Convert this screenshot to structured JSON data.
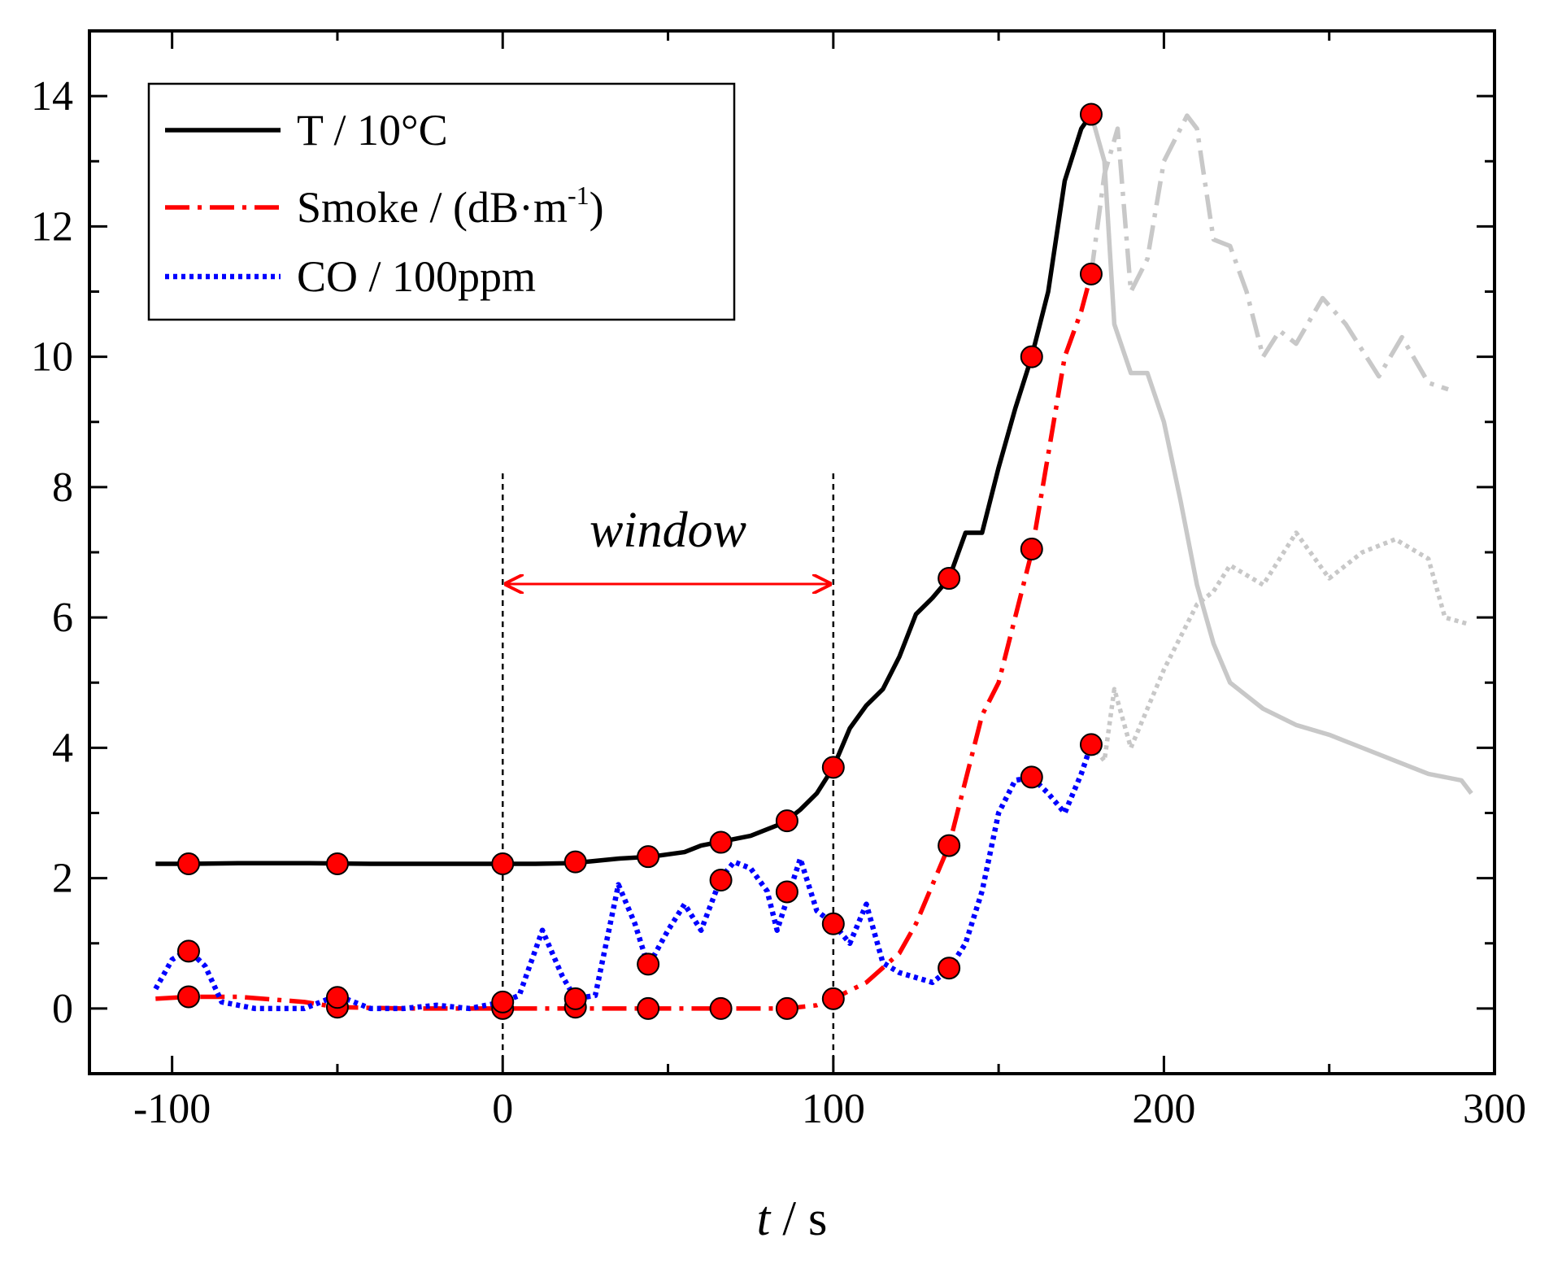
{
  "chart_data": {
    "type": "line",
    "xlabel_var": "t",
    "xlabel_unit": " / s",
    "ylabel": "",
    "xlim": [
      -125,
      300
    ],
    "ylim": [
      -1,
      15
    ],
    "xticks": [
      -100,
      0,
      100,
      200,
      300
    ],
    "yticks": [
      0,
      2,
      4,
      6,
      8,
      10,
      12,
      14
    ],
    "grid": false,
    "legend_position": "top-left",
    "window_annotation": {
      "label": "window",
      "x_start": 0,
      "x_end": 100
    },
    "series": [
      {
        "name": "T / 10°C",
        "color": "#000000",
        "style": "solid",
        "points": [
          [
            -105,
            2.22
          ],
          [
            -95,
            2.22
          ],
          [
            -80,
            2.23
          ],
          [
            -60,
            2.23
          ],
          [
            -40,
            2.22
          ],
          [
            -20,
            2.22
          ],
          [
            0,
            2.22
          ],
          [
            10,
            2.22
          ],
          [
            20,
            2.23
          ],
          [
            25,
            2.25
          ],
          [
            35,
            2.3
          ],
          [
            45,
            2.33
          ],
          [
            55,
            2.4
          ],
          [
            60,
            2.5
          ],
          [
            65,
            2.55
          ],
          [
            75,
            2.65
          ],
          [
            85,
            2.85
          ],
          [
            90,
            3.05
          ],
          [
            95,
            3.3
          ],
          [
            100,
            3.7
          ],
          [
            105,
            4.3
          ],
          [
            110,
            4.65
          ],
          [
            115,
            4.9
          ],
          [
            120,
            5.4
          ],
          [
            125,
            6.05
          ],
          [
            130,
            6.3
          ],
          [
            135,
            6.6
          ],
          [
            140,
            7.3
          ],
          [
            145,
            7.3
          ],
          [
            150,
            8.3
          ],
          [
            155,
            9.2
          ],
          [
            160,
            10.0
          ],
          [
            165,
            11.0
          ],
          [
            170,
            12.7
          ],
          [
            175,
            13.5
          ],
          [
            178,
            13.72
          ]
        ],
        "markers": [
          [
            -95,
            2.22
          ],
          [
            -50,
            2.22
          ],
          [
            0,
            2.22
          ],
          [
            22,
            2.25
          ],
          [
            44,
            2.33
          ],
          [
            66,
            2.55
          ],
          [
            86,
            2.88
          ],
          [
            100,
            3.7
          ],
          [
            135,
            6.6
          ],
          [
            160,
            10.0
          ],
          [
            178,
            13.72
          ]
        ]
      },
      {
        "name": "Smoke / (dB·m",
        "name_sup": "-1",
        "name_suffix": ")",
        "color": "#ff0000",
        "style": "dashdot",
        "points": [
          [
            -105,
            0.15
          ],
          [
            -95,
            0.18
          ],
          [
            -80,
            0.18
          ],
          [
            -60,
            0.1
          ],
          [
            -50,
            0.02
          ],
          [
            -30,
            0.0
          ],
          [
            0,
            0.0
          ],
          [
            20,
            0.0
          ],
          [
            44,
            0.0
          ],
          [
            66,
            0.0
          ],
          [
            86,
            0.0
          ],
          [
            95,
            0.05
          ],
          [
            100,
            0.15
          ],
          [
            110,
            0.4
          ],
          [
            120,
            0.85
          ],
          [
            125,
            1.3
          ],
          [
            130,
            1.9
          ],
          [
            135,
            2.5
          ],
          [
            140,
            3.5
          ],
          [
            145,
            4.5
          ],
          [
            150,
            5.0
          ],
          [
            155,
            6.0
          ],
          [
            160,
            7.0
          ],
          [
            165,
            8.5
          ],
          [
            170,
            10.0
          ],
          [
            175,
            10.7
          ],
          [
            178,
            11.27
          ]
        ],
        "markers": [
          [
            -95,
            0.18
          ],
          [
            -50,
            0.02
          ],
          [
            0,
            0.0
          ],
          [
            22,
            0.02
          ],
          [
            44,
            0.0
          ],
          [
            66,
            0.0
          ],
          [
            86,
            0.0
          ],
          [
            100,
            0.15
          ],
          [
            135,
            2.5
          ],
          [
            160,
            7.05
          ],
          [
            178,
            11.27
          ]
        ]
      },
      {
        "name": "CO / 100ppm",
        "color": "#0000ff",
        "style": "dotted",
        "points": [
          [
            -105,
            0.3
          ],
          [
            -100,
            0.75
          ],
          [
            -95,
            0.9
          ],
          [
            -90,
            0.65
          ],
          [
            -85,
            0.1
          ],
          [
            -75,
            0.0
          ],
          [
            -60,
            0.0
          ],
          [
            -50,
            0.2
          ],
          [
            -40,
            0.0
          ],
          [
            -30,
            0.0
          ],
          [
            -20,
            0.05
          ],
          [
            -10,
            0.0
          ],
          [
            0,
            0.1
          ],
          [
            5,
            0.2
          ],
          [
            12,
            1.2
          ],
          [
            18,
            0.5
          ],
          [
            22,
            0.15
          ],
          [
            28,
            0.2
          ],
          [
            35,
            1.9
          ],
          [
            40,
            1.3
          ],
          [
            44,
            0.65
          ],
          [
            50,
            1.2
          ],
          [
            55,
            1.6
          ],
          [
            60,
            1.2
          ],
          [
            66,
            2.0
          ],
          [
            70,
            2.25
          ],
          [
            75,
            2.15
          ],
          [
            80,
            1.8
          ],
          [
            83,
            1.2
          ],
          [
            90,
            2.3
          ],
          [
            95,
            1.5
          ],
          [
            100,
            1.3
          ],
          [
            105,
            1.0
          ],
          [
            110,
            1.6
          ],
          [
            115,
            0.7
          ],
          [
            120,
            0.55
          ],
          [
            130,
            0.4
          ],
          [
            135,
            0.6
          ],
          [
            140,
            1.0
          ],
          [
            145,
            1.8
          ],
          [
            150,
            3.0
          ],
          [
            155,
            3.5
          ],
          [
            160,
            3.55
          ],
          [
            165,
            3.3
          ],
          [
            170,
            3.0
          ],
          [
            175,
            3.6
          ],
          [
            178,
            4.05
          ]
        ],
        "markers": [
          [
            -95,
            0.88
          ],
          [
            -50,
            0.17
          ],
          [
            0,
            0.1
          ],
          [
            22,
            0.15
          ],
          [
            44,
            0.68
          ],
          [
            66,
            1.97
          ],
          [
            86,
            1.79
          ],
          [
            100,
            1.3
          ],
          [
            135,
            0.62
          ],
          [
            160,
            3.55
          ],
          [
            178,
            4.05
          ]
        ]
      }
    ],
    "faded_series": [
      {
        "color": "#c8c8c8",
        "style": "solid",
        "points": [
          [
            178,
            13.72
          ],
          [
            182,
            13.0
          ],
          [
            185,
            10.5
          ],
          [
            190,
            9.75
          ],
          [
            195,
            9.75
          ],
          [
            200,
            9.0
          ],
          [
            205,
            7.8
          ],
          [
            210,
            6.5
          ],
          [
            215,
            5.6
          ],
          [
            220,
            5.0
          ],
          [
            230,
            4.6
          ],
          [
            240,
            4.35
          ],
          [
            250,
            4.2
          ],
          [
            260,
            4.0
          ],
          [
            270,
            3.8
          ],
          [
            280,
            3.6
          ],
          [
            290,
            3.5
          ],
          [
            293,
            3.3
          ]
        ]
      },
      {
        "color": "#c8c8c8",
        "style": "dashdot",
        "points": [
          [
            178,
            11.27
          ],
          [
            182,
            12.8
          ],
          [
            186,
            13.5
          ],
          [
            190,
            11.0
          ],
          [
            195,
            11.5
          ],
          [
            200,
            13.0
          ],
          [
            207,
            13.7
          ],
          [
            210,
            13.5
          ],
          [
            215,
            11.8
          ],
          [
            220,
            11.7
          ],
          [
            225,
            11.0
          ],
          [
            230,
            10.0
          ],
          [
            235,
            10.4
          ],
          [
            240,
            10.2
          ],
          [
            248,
            10.9
          ],
          [
            255,
            10.5
          ],
          [
            265,
            9.7
          ],
          [
            272,
            10.3
          ],
          [
            280,
            9.6
          ],
          [
            286,
            9.5
          ]
        ]
      },
      {
        "color": "#c8c8c8",
        "style": "dotted",
        "points": [
          [
            178,
            4.05
          ],
          [
            182,
            3.8
          ],
          [
            185,
            4.9
          ],
          [
            190,
            4.0
          ],
          [
            195,
            4.6
          ],
          [
            200,
            5.2
          ],
          [
            210,
            6.2
          ],
          [
            215,
            6.4
          ],
          [
            220,
            6.8
          ],
          [
            230,
            6.5
          ],
          [
            240,
            7.3
          ],
          [
            250,
            6.6
          ],
          [
            260,
            7.0
          ],
          [
            270,
            7.2
          ],
          [
            280,
            6.9
          ],
          [
            285,
            6.0
          ],
          [
            292,
            5.9
          ]
        ]
      }
    ]
  }
}
